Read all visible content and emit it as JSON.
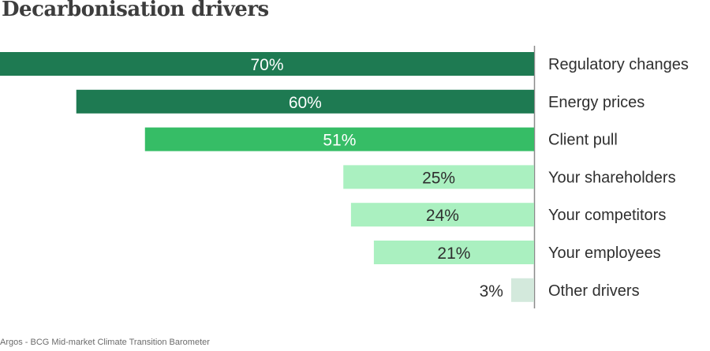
{
  "chart": {
    "title": "Decarbonisation drivers",
    "source": "Argos - BCG Mid-market Climate Transition Barometer"
  },
  "chart_data": {
    "type": "bar",
    "orientation": "horizontal",
    "title": "Decarbonisation drivers",
    "categories": [
      "Regulatory changes",
      "Energy prices",
      "Client pull",
      "Your shareholders",
      "Your competitors",
      "Your employees",
      "Other drivers"
    ],
    "values": [
      70,
      60,
      51,
      25,
      24,
      21,
      3
    ],
    "value_labels": [
      "70%",
      "60%",
      "51%",
      "25%",
      "24%",
      "21%",
      "3%"
    ],
    "unit": "%",
    "xlim": [
      0,
      70
    ],
    "bars_grow": "right-to-left",
    "label_position": "right of bars",
    "grid": false,
    "colors": [
      "#1e7a52",
      "#1e7a52",
      "#36bd66",
      "#aaf0c0",
      "#aaf0c0",
      "#aaf0c0",
      "#d3e9dc"
    ],
    "label_colors": [
      "#ffffff",
      "#ffffff",
      "#ffffff",
      "#2f2f2f",
      "#2f2f2f",
      "#2f2f2f",
      "#2f2f2f"
    ],
    "axis_color": "#8a8a8a"
  }
}
